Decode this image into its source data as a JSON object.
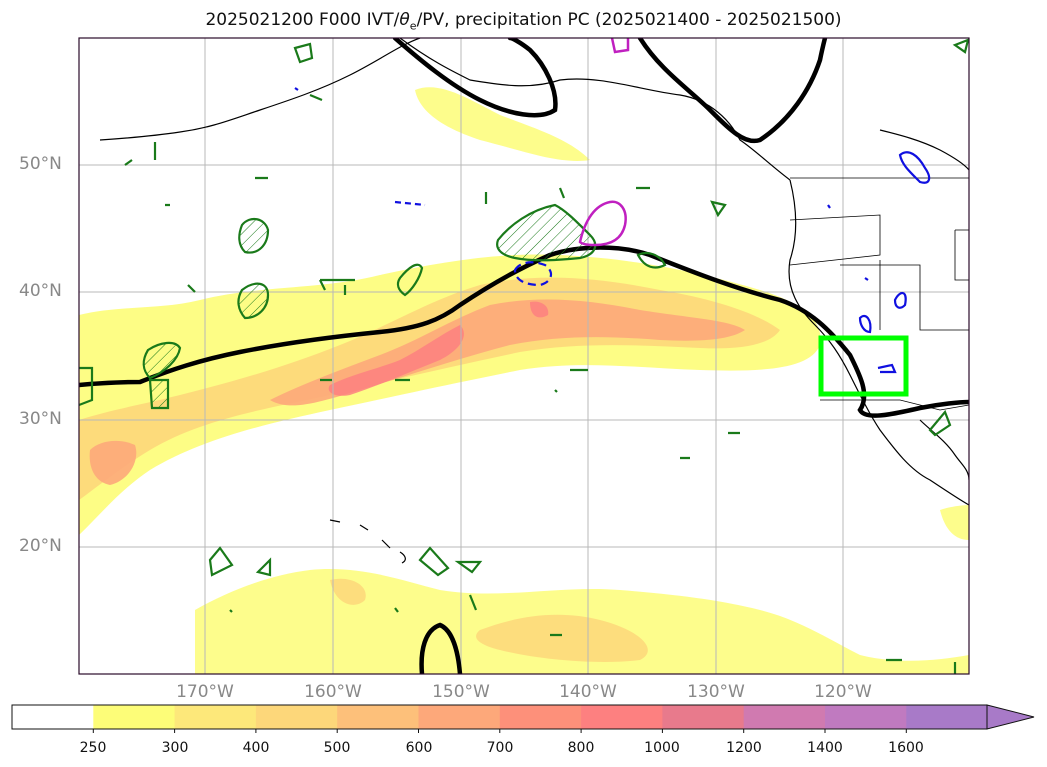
{
  "title_main": "2025021200 F000 IVT/",
  "title_theta": "θ",
  "title_sub": "e",
  "title_rest": "/PV, precipitation PC (2025021400 - 2025021500)",
  "lat_labels": [
    "50°N",
    "40°N",
    "30°N",
    "20°N"
  ],
  "lon_labels": [
    "170°W",
    "160°W",
    "150°W",
    "140°W",
    "130°W",
    "120°W"
  ],
  "colorbar": {
    "ticks": [
      "250",
      "300",
      "400",
      "500",
      "600",
      "700",
      "800",
      "1000",
      "1200",
      "1400",
      "1600"
    ],
    "colors": [
      "#ffffff",
      "#fdfd78",
      "#fde87a",
      "#fdd77a",
      "#fdc07a",
      "#fda87a",
      "#fd907a",
      "#fd8080",
      "#e87a8c",
      "#d07ab0",
      "#c07ac0",
      "#a87ac8"
    ]
  },
  "highlight_box_color": "#00ff00"
}
